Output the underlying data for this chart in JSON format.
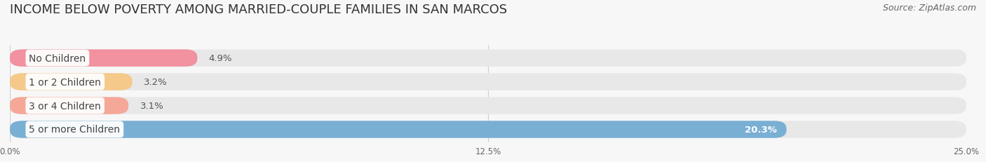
{
  "title": "INCOME BELOW POVERTY AMONG MARRIED-COUPLE FAMILIES IN SAN MARCOS",
  "source": "Source: ZipAtlas.com",
  "categories": [
    "No Children",
    "1 or 2 Children",
    "3 or 4 Children",
    "5 or more Children"
  ],
  "values": [
    4.9,
    3.2,
    3.1,
    20.3
  ],
  "bar_colors": [
    "#f2919f",
    "#f5c98a",
    "#f5a898",
    "#7aafd4"
  ],
  "bg_bar_color": "#e8e8e8",
  "xlim": [
    0,
    25.0
  ],
  "xticks": [
    0.0,
    12.5,
    25.0
  ],
  "xtick_labels": [
    "0.0%",
    "12.5%",
    "25.0%"
  ],
  "title_fontsize": 13,
  "source_fontsize": 9,
  "bar_label_fontsize": 9.5,
  "cat_label_fontsize": 10,
  "bar_height": 0.72,
  "background_color": "#f7f7f7"
}
